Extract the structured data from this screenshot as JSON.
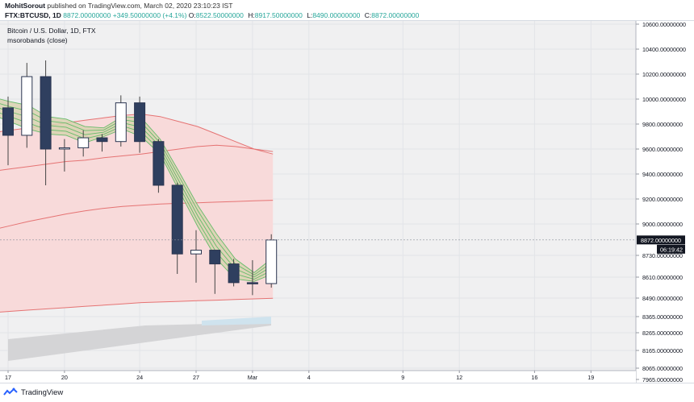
{
  "header": {
    "author": "MohitSorout",
    "published_text": "published on TradingView.com, March 02, 2020 23:10:23 IST",
    "symbol": "FTX:BTCUSD, 1D",
    "last": "8872.00000000",
    "change": "+349.50000000 (+4.1%)",
    "o_label": "O:",
    "o_value": "8522.50000000",
    "h_label": "H:",
    "h_value": "8917.50000000",
    "l_label": "L:",
    "l_value": "8490.00000000",
    "c_label": "C:",
    "c_value": "8872.00000000"
  },
  "legend": {
    "title": "Bitcoin / U.S. Dollar, 1D, FTX",
    "indicator": "msorobands (close)"
  },
  "price_label": "8872.00000000",
  "countdown": "06:19:42",
  "footer": {
    "brand": "TradingView",
    "logo_icon": "tradingview-logo-icon"
  },
  "colors": {
    "up_body": "#ffffff",
    "down_body": "#2f3f5f",
    "wick": "#444444",
    "band_fill": "#f8dada",
    "band_line": "#e57373",
    "ribbon_fill": "#d9d2b0",
    "ribbon_line": "#66bb6a",
    "gray_fill": "#d4d4d6",
    "blue_fill": "#cfe3ee"
  },
  "chart_data": {
    "type": "candlestick",
    "title": "Bitcoin / U.S. Dollar, 1D, FTX",
    "y_ticks": [
      "10600.00000000",
      "10400.00000000",
      "10200.00000000",
      "10000.00000000",
      "9800.00000000",
      "9600.00000000",
      "9400.00000000",
      "9200.00000000",
      "9000.00000000",
      "8730.00000000",
      "8610.00000000",
      "8490.00000000",
      "8365.00000000",
      "8265.00000000",
      "8165.00000000",
      "8065.00000000",
      "7965.00000000"
    ],
    "x_ticks": [
      "17",
      "20",
      "24",
      "27",
      "Mar",
      "4",
      "9",
      "12",
      "16",
      "19"
    ],
    "candles": [
      {
        "date": "Feb 17",
        "open": 9930,
        "high": 10020,
        "low": 9470,
        "close": 9710
      },
      {
        "date": "Feb 18",
        "open": 9710,
        "high": 10290,
        "low": 9610,
        "close": 10180
      },
      {
        "date": "Feb 19",
        "open": 10180,
        "high": 10310,
        "low": 9310,
        "close": 9600
      },
      {
        "date": "Feb 20",
        "open": 9600,
        "high": 9680,
        "low": 9420,
        "close": 9610
      },
      {
        "date": "Feb 21",
        "open": 9610,
        "high": 9750,
        "low": 9540,
        "close": 9690
      },
      {
        "date": "Feb 22",
        "open": 9690,
        "high": 9720,
        "low": 9580,
        "close": 9660
      },
      {
        "date": "Feb 23",
        "open": 9660,
        "high": 10030,
        "low": 9620,
        "close": 9970
      },
      {
        "date": "Feb 24",
        "open": 9970,
        "high": 10020,
        "low": 9570,
        "close": 9660
      },
      {
        "date": "Feb 25",
        "open": 9660,
        "high": 9680,
        "low": 9250,
        "close": 9310
      },
      {
        "date": "Feb 26",
        "open": 9310,
        "high": 9330,
        "low": 8600,
        "close": 8760
      },
      {
        "date": "Feb 27",
        "open": 8760,
        "high": 8950,
        "low": 8530,
        "close": 8790
      },
      {
        "date": "Feb 28",
        "open": 8790,
        "high": 8790,
        "low": 8440,
        "close": 8680
      },
      {
        "date": "Feb 29",
        "open": 8680,
        "high": 8720,
        "low": 8500,
        "close": 8530
      },
      {
        "date": "Mar 01",
        "open": 8530,
        "high": 8710,
        "low": 8430,
        "close": 8522.5
      },
      {
        "date": "Mar 02",
        "open": 8522.5,
        "high": 8917.5,
        "low": 8490,
        "close": 8872
      }
    ],
    "bands": {
      "upper": [
        9730,
        9750,
        9770,
        9790,
        9810,
        9830,
        9850,
        9870,
        9880,
        9860,
        9820,
        9780,
        9720,
        9660,
        9600,
        9560
      ],
      "middle": [
        9420,
        9440,
        9460,
        9480,
        9500,
        9510,
        9530,
        9545,
        9560,
        9580,
        9600,
        9620,
        9630,
        9620,
        9600,
        9580
      ],
      "middle2": [
        8950,
        8985,
        9020,
        9050,
        9080,
        9105,
        9125,
        9140,
        9150,
        9160,
        9165,
        9170,
        9175,
        9180,
        9185,
        9190
      ],
      "lower": [
        8290,
        8300,
        8310,
        8320,
        8330,
        8340,
        8350,
        8360,
        8370,
        8375,
        8380,
        8385,
        8390,
        8395,
        8400,
        8405
      ]
    },
    "ribbon": {
      "upper": [
        10020,
        9980,
        9950,
        9860,
        9840,
        9780,
        9770,
        9860,
        9850,
        9680,
        9420,
        9150,
        8920,
        8720,
        8610,
        8730
      ],
      "lower": [
        9880,
        9820,
        9760,
        9720,
        9710,
        9650,
        9700,
        9760,
        9700,
        9560,
        9270,
        8980,
        8720,
        8560,
        8540,
        8600
      ]
    }
  }
}
